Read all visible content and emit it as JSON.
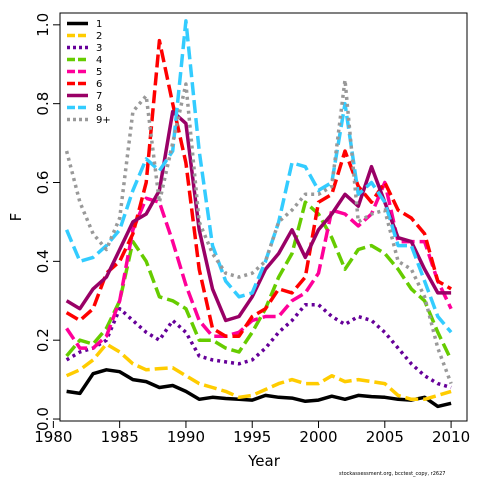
{
  "chart_data": {
    "type": "line",
    "xlabel": "Year",
    "ylabel": "F",
    "xlim": [
      1980.5,
      2011.2
    ],
    "ylim": [
      -0.005,
      1.03
    ],
    "xticks": [
      1980,
      1985,
      1990,
      1995,
      2000,
      2005,
      2010
    ],
    "yticks": [
      0.0,
      0.2,
      0.4,
      0.6,
      0.8,
      1.0
    ],
    "ytick_labels": [
      "0.0",
      "0.2",
      "0.4",
      "0.6",
      "0.8",
      "1.0"
    ],
    "grid": false,
    "legend_position": "top-left",
    "x": [
      1981,
      1982,
      1983,
      1984,
      1985,
      1986,
      1987,
      1988,
      1989,
      1990,
      1991,
      1992,
      1993,
      1994,
      1995,
      1996,
      1997,
      1998,
      1999,
      2000,
      2001,
      2002,
      2003,
      2004,
      2005,
      2006,
      2007,
      2008,
      2009,
      2010
    ],
    "series": [
      {
        "name": "1",
        "color": "#000000",
        "dash": "solid",
        "values": [
          0.07,
          0.065,
          0.115,
          0.125,
          0.12,
          0.1,
          0.095,
          0.08,
          0.085,
          0.07,
          0.05,
          0.055,
          0.052,
          0.05,
          0.048,
          0.06,
          0.055,
          0.053,
          0.045,
          0.048,
          0.058,
          0.05,
          0.06,
          0.057,
          0.055,
          0.05,
          0.048,
          0.055,
          0.032,
          0.04
        ]
      },
      {
        "name": "2",
        "color": "#FFCC00",
        "dash": "long",
        "values": [
          0.11,
          0.125,
          0.15,
          0.19,
          0.17,
          0.14,
          0.125,
          0.128,
          0.13,
          0.11,
          0.09,
          0.08,
          0.07,
          0.055,
          0.06,
          0.075,
          0.09,
          0.1,
          0.09,
          0.09,
          0.11,
          0.095,
          0.1,
          0.095,
          0.09,
          0.06,
          0.05,
          0.05,
          0.06,
          0.07
        ]
      },
      {
        "name": "3",
        "color": "#660099",
        "dash": "dot",
        "values": [
          0.15,
          0.17,
          0.18,
          0.2,
          0.28,
          0.25,
          0.22,
          0.2,
          0.25,
          0.22,
          0.16,
          0.15,
          0.145,
          0.14,
          0.15,
          0.18,
          0.22,
          0.25,
          0.29,
          0.29,
          0.26,
          0.24,
          0.26,
          0.25,
          0.22,
          0.18,
          0.14,
          0.11,
          0.09,
          0.08
        ]
      },
      {
        "name": "4",
        "color": "#66CC00",
        "dash": "long",
        "values": [
          0.16,
          0.2,
          0.19,
          0.23,
          0.3,
          0.45,
          0.4,
          0.31,
          0.3,
          0.28,
          0.2,
          0.2,
          0.18,
          0.17,
          0.22,
          0.28,
          0.36,
          0.42,
          0.55,
          0.52,
          0.46,
          0.38,
          0.43,
          0.44,
          0.42,
          0.38,
          0.33,
          0.3,
          0.22,
          0.15
        ]
      },
      {
        "name": "5",
        "color": "#FF0099",
        "dash": "long",
        "values": [
          0.23,
          0.18,
          0.18,
          0.21,
          0.3,
          0.48,
          0.56,
          0.55,
          0.45,
          0.34,
          0.25,
          0.21,
          0.21,
          0.22,
          0.25,
          0.26,
          0.26,
          0.3,
          0.32,
          0.37,
          0.53,
          0.52,
          0.49,
          0.52,
          0.6,
          0.45,
          0.45,
          0.45,
          0.35,
          0.28
        ]
      },
      {
        "name": "6",
        "color": "#FF0000",
        "dash": "long",
        "values": [
          0.27,
          0.25,
          0.28,
          0.37,
          0.4,
          0.47,
          0.6,
          0.96,
          0.8,
          0.65,
          0.38,
          0.23,
          0.21,
          0.21,
          0.26,
          0.28,
          0.33,
          0.32,
          0.36,
          0.55,
          0.57,
          0.68,
          0.59,
          0.55,
          0.6,
          0.53,
          0.51,
          0.47,
          0.35,
          0.33
        ]
      },
      {
        "name": "7",
        "color": "#990066",
        "dash": "solid",
        "values": [
          0.3,
          0.28,
          0.33,
          0.36,
          0.43,
          0.5,
          0.52,
          0.58,
          0.78,
          0.75,
          0.48,
          0.33,
          0.25,
          0.26,
          0.31,
          0.38,
          0.42,
          0.48,
          0.41,
          0.48,
          0.52,
          0.57,
          0.54,
          0.64,
          0.55,
          0.46,
          0.45,
          0.38,
          0.32,
          0.32
        ]
      },
      {
        "name": "8",
        "color": "#33CCFF",
        "dash": "long",
        "values": [
          0.48,
          0.4,
          0.41,
          0.44,
          0.48,
          0.58,
          0.66,
          0.63,
          0.68,
          1.01,
          0.68,
          0.44,
          0.35,
          0.31,
          0.32,
          0.4,
          0.5,
          0.65,
          0.64,
          0.58,
          0.6,
          0.8,
          0.57,
          0.6,
          0.55,
          0.44,
          0.44,
          0.35,
          0.26,
          0.22
        ]
      },
      {
        "name": "9+",
        "color": "#999999",
        "dash": "dot",
        "values": [
          0.68,
          0.55,
          0.47,
          0.43,
          0.51,
          0.78,
          0.82,
          0.55,
          0.7,
          0.85,
          0.5,
          0.42,
          0.37,
          0.36,
          0.37,
          0.4,
          0.5,
          0.53,
          0.57,
          0.57,
          0.59,
          0.86,
          0.5,
          0.52,
          0.53,
          0.4,
          0.38,
          0.31,
          0.18,
          0.09
        ]
      }
    ]
  },
  "footer": {
    "credit": "stockassessment.org, bcctest_copy, r2627"
  }
}
